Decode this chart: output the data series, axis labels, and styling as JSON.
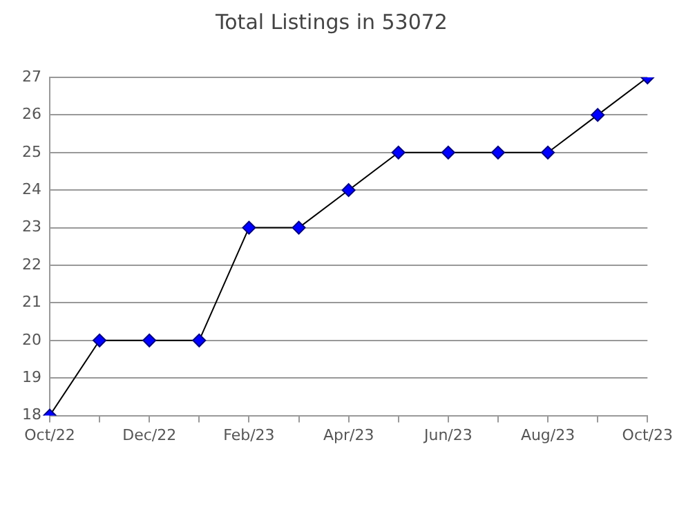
{
  "chart_data": {
    "type": "line",
    "title": "Total Listings in 53072",
    "categories": [
      "Oct/22",
      null,
      "Dec/22",
      null,
      "Feb/23",
      null,
      "Apr/23",
      null,
      "Jun/23",
      null,
      "Aug/23",
      null,
      "Oct/23"
    ],
    "series": [
      {
        "color": "#0000ff",
        "values": [
          18,
          20,
          20,
          20,
          23,
          23,
          24,
          25,
          25,
          25,
          25,
          26,
          27
        ]
      }
    ],
    "ylim": [
      18,
      27
    ],
    "yticks": [
      18,
      19,
      20,
      21,
      22,
      23,
      24,
      25,
      26,
      27
    ],
    "grid": "y",
    "legend": false,
    "marker": "diamond",
    "line_style": "solid"
  }
}
